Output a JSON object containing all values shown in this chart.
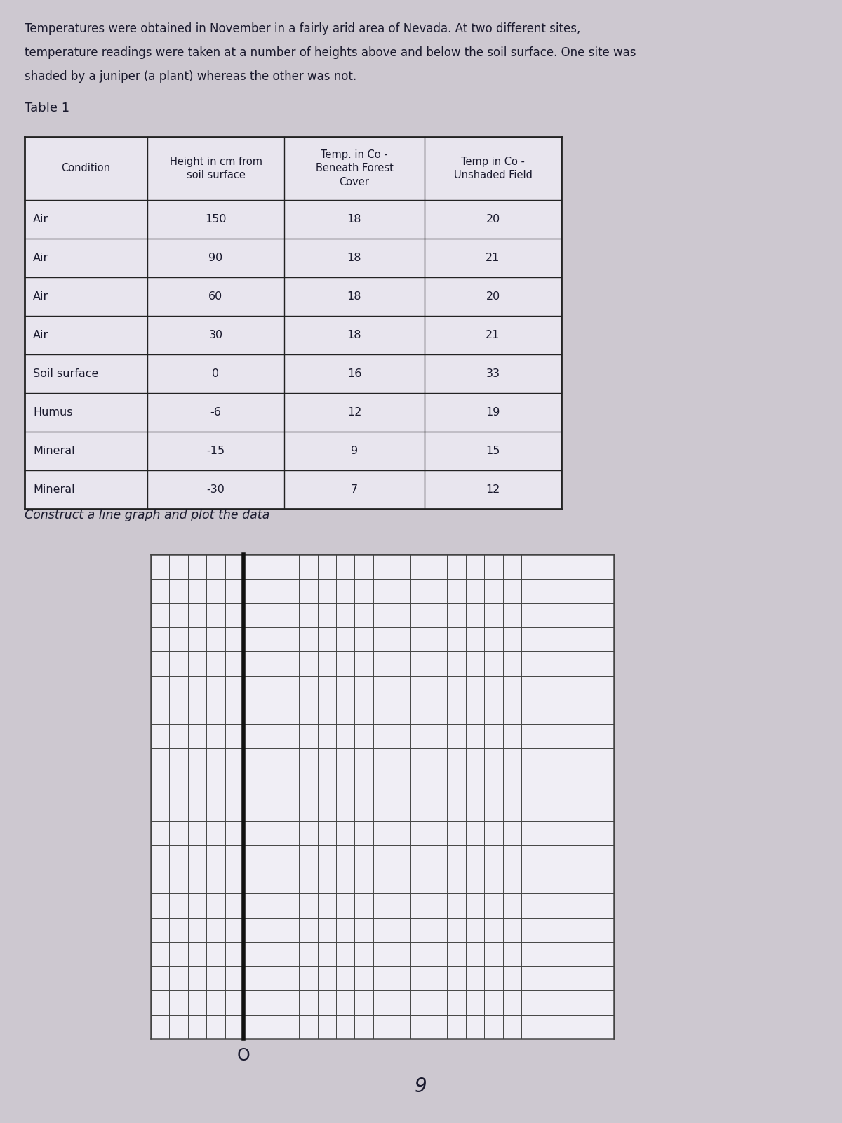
{
  "background_color": "#cdc8d0",
  "page_background": "#cdc8d0",
  "text_color": "#1a1a2e",
  "intro_line1": "Temperatures were obtained in November in a fairly arid area of Nevada. At two different sites,",
  "intro_line2": "temperature readings were taken at a number of heights above and below the soil surface. One site was",
  "intro_line3": "shaded by a juniper (a plant) whereas the other was not.",
  "table_title": "Table 1",
  "table_headers": [
    "Condition",
    "Height in cm from\nsoil surface",
    "Temp. in Co -\nBeneath Forest\nCover",
    "Temp in Co -\nUnshaded Field"
  ],
  "table_conditions": [
    "Air",
    "Air",
    "Air",
    "Air",
    "Soil surface",
    "Humus",
    "Mineral",
    "Mineral"
  ],
  "table_heights": [
    "150",
    "90",
    "60",
    "30",
    "0",
    "-6",
    "-15",
    "-30"
  ],
  "table_forest": [
    "18",
    "18",
    "18",
    "18",
    "16",
    "12",
    "9",
    "7"
  ],
  "table_field": [
    "20",
    "21",
    "20",
    "21",
    "33",
    "19",
    "15",
    "12"
  ],
  "instruction_text": "Construct a line graph and plot the data",
  "grid_rows": 20,
  "grid_cols": 25,
  "bold_col": 5,
  "origin_label": "O",
  "page_number": "9",
  "grid_color": "#444444",
  "grid_bg": "#f0eef5",
  "bold_line_color": "#111111",
  "table_border_color": "#222222",
  "table_bg": "#e8e5ee"
}
